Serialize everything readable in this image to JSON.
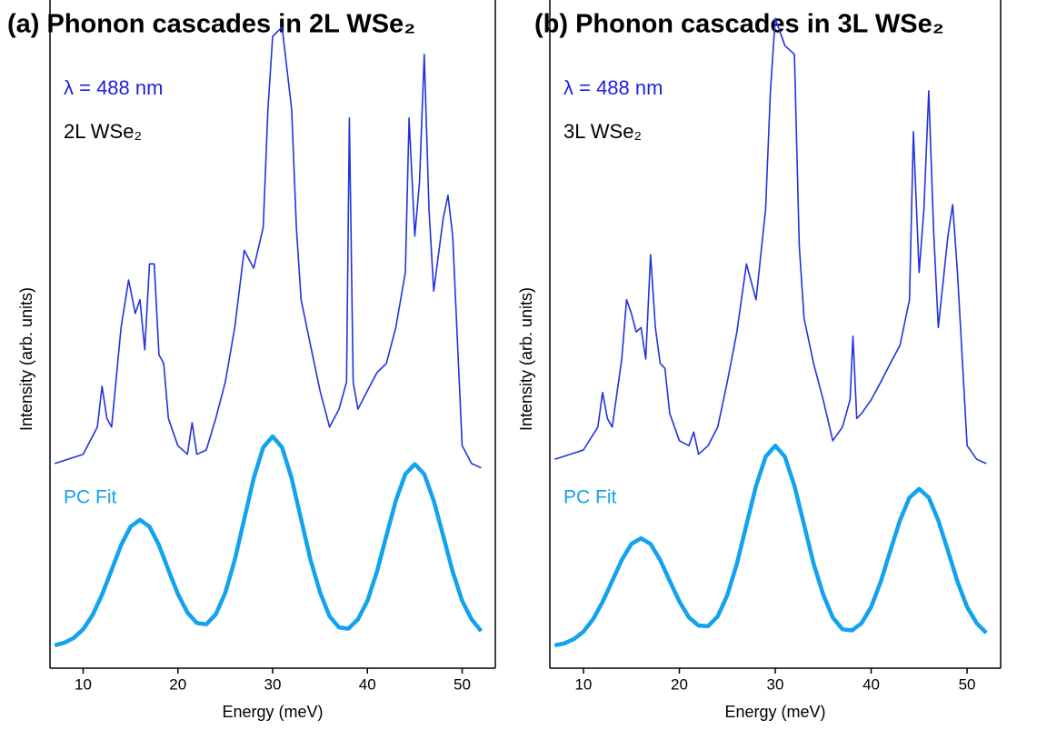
{
  "chart_data": [
    {
      "type": "line",
      "title": "(a)  Phonon cascades in 2L WSe₂",
      "xlabel": "Energy (meV)",
      "ylabel": "Intensity (arb. units)",
      "xlim": [
        6.5,
        53.5
      ],
      "xticks": [
        10,
        20,
        30,
        40,
        50
      ],
      "ylim": [
        0,
        100
      ],
      "annotations": [
        {
          "text": "λ = 488 nm",
          "color": "#1f1fe0"
        },
        {
          "text": "2L WSe₂",
          "color": "#000000"
        }
      ],
      "series": [
        {
          "color": "#2233dd",
          "width": 1.6,
          "x": [
            7,
            10,
            11.5,
            12,
            12.5,
            13,
            14,
            14.8,
            15.5,
            16,
            16.5,
            17,
            17.5,
            18,
            18.5,
            19,
            20,
            21,
            21.5,
            22,
            23,
            24,
            25,
            26,
            27,
            28,
            29,
            29.5,
            30,
            31,
            32,
            32.5,
            33,
            34,
            35,
            36,
            37,
            37.8,
            38.1,
            38.5,
            39,
            40,
            41,
            42,
            43,
            44,
            44.4,
            45,
            45.5,
            46,
            46.5,
            47,
            48,
            48.5,
            49,
            50,
            51,
            52
          ],
          "values": [
            33.1,
            34.6,
            39.0,
            45.6,
            40.4,
            39.0,
            55.1,
            62.8,
            57.4,
            59.6,
            51.5,
            65.4,
            65.4,
            50.7,
            49.3,
            40.4,
            36.0,
            34.6,
            39.7,
            34.6,
            35.3,
            40.4,
            46.3,
            55.1,
            67.6,
            64.7,
            71.3,
            90.4,
            102.2,
            103.7,
            90.4,
            71.3,
            59.6,
            52.2,
            44.9,
            39.0,
            41.9,
            46.3,
            89.0,
            46.3,
            41.9,
            44.9,
            47.8,
            49.3,
            55.1,
            64.0,
            89.0,
            69.9,
            78.7,
            99.3,
            74.3,
            61.0,
            72.8,
            76.5,
            69.9,
            36.0,
            33.1,
            32.4
          ]
        },
        {
          "name": "PC Fit",
          "color": "#12a2ee",
          "width": 4.5,
          "x": [
            7,
            8,
            9,
            10,
            11,
            12,
            13,
            14,
            15,
            16,
            17,
            18,
            19,
            20,
            21,
            22,
            23,
            24,
            25,
            26,
            27,
            28,
            29,
            30,
            31,
            32,
            33,
            34,
            35,
            36,
            37,
            38,
            39,
            40,
            41,
            42,
            43,
            44,
            45,
            46,
            47,
            48,
            49,
            50,
            51,
            52
          ],
          "values": [
            3.7,
            4.1,
            4.9,
            6.3,
            8.6,
            11.9,
            15.9,
            19.9,
            22.9,
            24.0,
            22.9,
            19.9,
            15.9,
            12.0,
            9.0,
            7.3,
            7.1,
            8.7,
            12.2,
            17.5,
            24.1,
            30.7,
            35.7,
            37.5,
            35.7,
            30.7,
            24.1,
            17.5,
            12.3,
            8.4,
            6.6,
            6.4,
            7.9,
            10.9,
            15.6,
            21.4,
            27.1,
            31.4,
            33.0,
            31.4,
            27.1,
            21.4,
            15.6,
            10.9,
            7.9,
            6.0
          ]
        }
      ]
    },
    {
      "type": "line",
      "title": "(b)  Phonon cascades in 3L WSe₂",
      "xlabel": "Energy (meV)",
      "ylabel": "Intensity (arb. units)",
      "xlim": [
        6.5,
        53.5
      ],
      "xticks": [
        10,
        20,
        30,
        40,
        50
      ],
      "ylim": [
        0,
        100
      ],
      "annotations": [
        {
          "text": "λ = 488 nm",
          "color": "#1f1fe0"
        },
        {
          "text": "3L WSe₂",
          "color": "#000000"
        }
      ],
      "series": [
        {
          "color": "#2233dd",
          "width": 1.6,
          "x": [
            7,
            10,
            11.5,
            12,
            12.5,
            13,
            14,
            14.5,
            15,
            15.5,
            16,
            16.5,
            17,
            17.5,
            18,
            18.5,
            19,
            20,
            21,
            21.5,
            22,
            23,
            24,
            25,
            26,
            27,
            28,
            29,
            29.5,
            30,
            31,
            32,
            32.5,
            33,
            34,
            35,
            36,
            37,
            37.8,
            38.1,
            38.5,
            39,
            40,
            41,
            42,
            43,
            44,
            44.4,
            45,
            45.5,
            46,
            46.5,
            47,
            48,
            48.5,
            49,
            50,
            51,
            52
          ],
          "values": [
            33.8,
            35.3,
            39.0,
            44.6,
            40.4,
            39.0,
            50.0,
            59.6,
            57.4,
            54.4,
            55.1,
            50.0,
            66.9,
            55.1,
            49.3,
            48.5,
            41.2,
            36.8,
            36.0,
            38.2,
            34.6,
            36.0,
            39.0,
            46.3,
            54.4,
            65.4,
            59.6,
            74.3,
            93.4,
            105.1,
            100.7,
            99.3,
            68.4,
            56.6,
            49.3,
            43.4,
            36.8,
            39.0,
            43.4,
            53.7,
            40.4,
            41.2,
            43.4,
            46.3,
            49.3,
            52.2,
            59.6,
            86.8,
            64.0,
            74.3,
            93.4,
            71.3,
            55.1,
            69.9,
            75.0,
            64.0,
            36.0,
            33.8,
            33.1
          ]
        },
        {
          "name": "PC Fit",
          "color": "#12a2ee",
          "width": 4.5,
          "x": [
            7,
            8,
            9,
            10,
            11,
            12,
            13,
            14,
            15,
            16,
            17,
            18,
            19,
            20,
            21,
            22,
            23,
            24,
            25,
            26,
            27,
            28,
            29,
            30,
            31,
            32,
            33,
            34,
            35,
            36,
            37,
            38,
            39,
            40,
            41,
            42,
            43,
            44,
            45,
            46,
            47,
            48,
            49,
            50,
            51,
            52
          ],
          "values": [
            3.7,
            4.0,
            4.7,
            5.9,
            7.9,
            10.7,
            14.1,
            17.5,
            20.1,
            21.0,
            20.1,
            17.5,
            14.1,
            10.8,
            8.2,
            6.9,
            6.8,
            8.4,
            11.8,
            16.9,
            23.2,
            29.5,
            34.2,
            36.0,
            34.2,
            29.5,
            23.2,
            16.9,
            11.9,
            8.2,
            6.3,
            6.1,
            7.3,
            9.9,
            14.0,
            19.0,
            23.9,
            27.6,
            29.0,
            27.6,
            23.9,
            19.0,
            14.0,
            9.9,
            7.3,
            5.7
          ]
        }
      ]
    }
  ]
}
